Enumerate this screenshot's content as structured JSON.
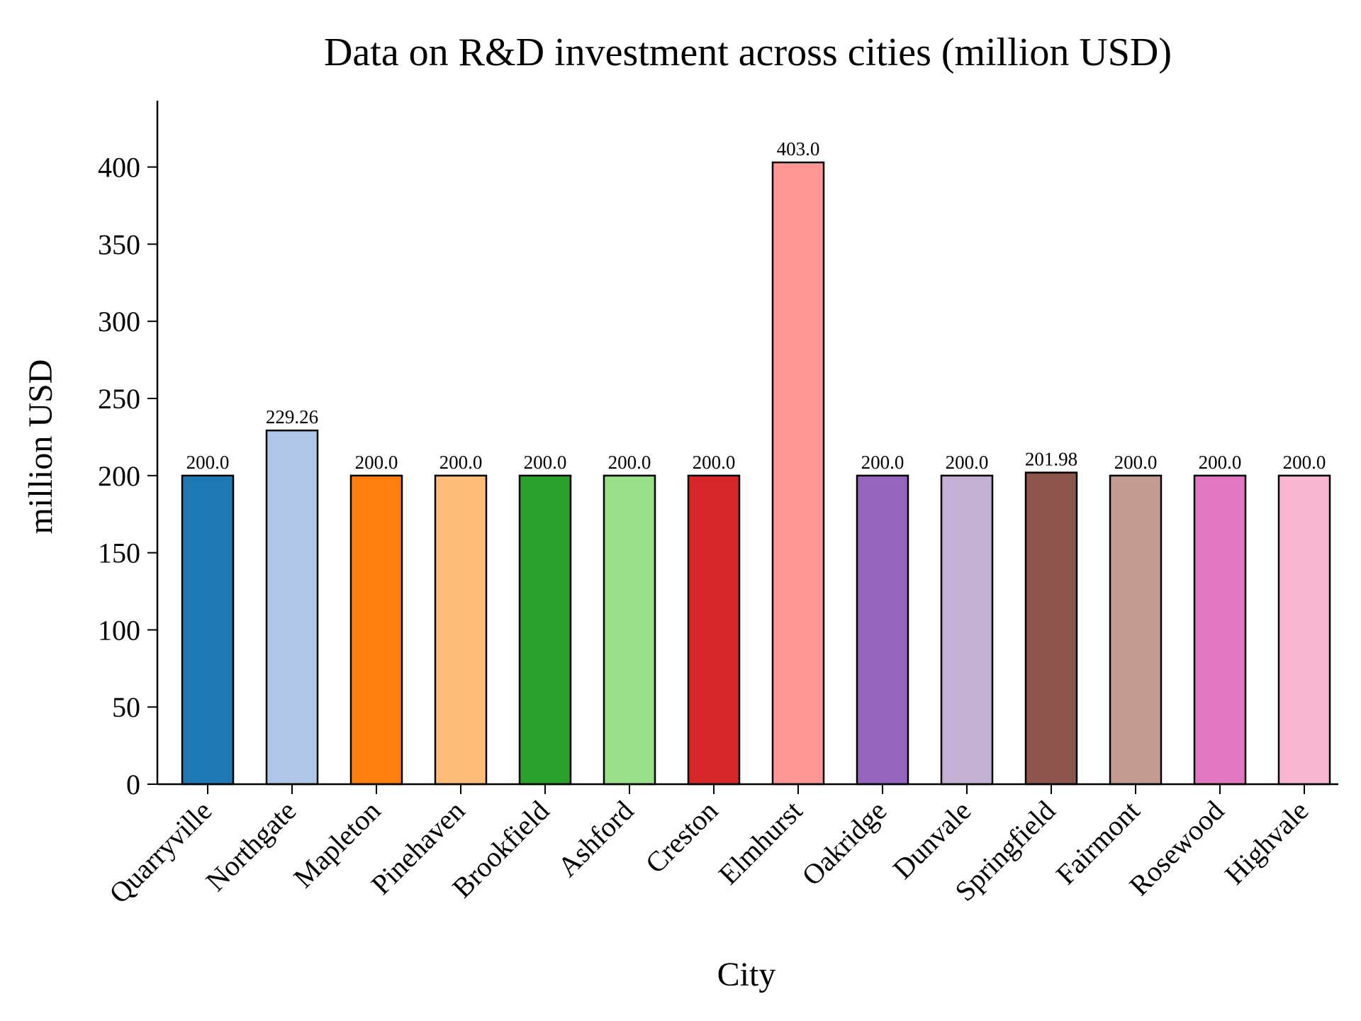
{
  "chart_data": {
    "type": "bar",
    "title": "Data on R&D investment across cities (million USD)",
    "xlabel": "City",
    "ylabel": "million USD",
    "ylim": [
      0,
      443
    ],
    "yticks": [
      0,
      50,
      100,
      150,
      200,
      250,
      300,
      350,
      400
    ],
    "categories": [
      "Quarryville",
      "Northgate",
      "Mapleton",
      "Pinehaven",
      "Brookfield",
      "Ashford",
      "Creston",
      "Elmhurst",
      "Oakridge",
      "Dunvale",
      "Springfield",
      "Fairmont",
      "Rosewood",
      "Highvale"
    ],
    "values": [
      200.0,
      229.26,
      200.0,
      200.0,
      200.0,
      200.0,
      200.0,
      403.0,
      200.0,
      200.0,
      201.98,
      200.0,
      200.0,
      200.0
    ],
    "value_labels": [
      "200.0",
      "229.26",
      "200.0",
      "200.0",
      "200.0",
      "200.0",
      "200.0",
      "403.0",
      "200.0",
      "200.0",
      "201.98",
      "200.0",
      "200.0",
      "200.0"
    ],
    "colors": [
      "#1f77b4",
      "#aec7e8",
      "#ff7f0e",
      "#ffbb78",
      "#2ca02c",
      "#98df8a",
      "#d62728",
      "#ff9896",
      "#9467bd",
      "#c5b0d5",
      "#8c564b",
      "#c49c94",
      "#e377c2",
      "#f7b6d2"
    ],
    "bar_edge_color": "#000000",
    "grid": false,
    "legend": "none"
  }
}
